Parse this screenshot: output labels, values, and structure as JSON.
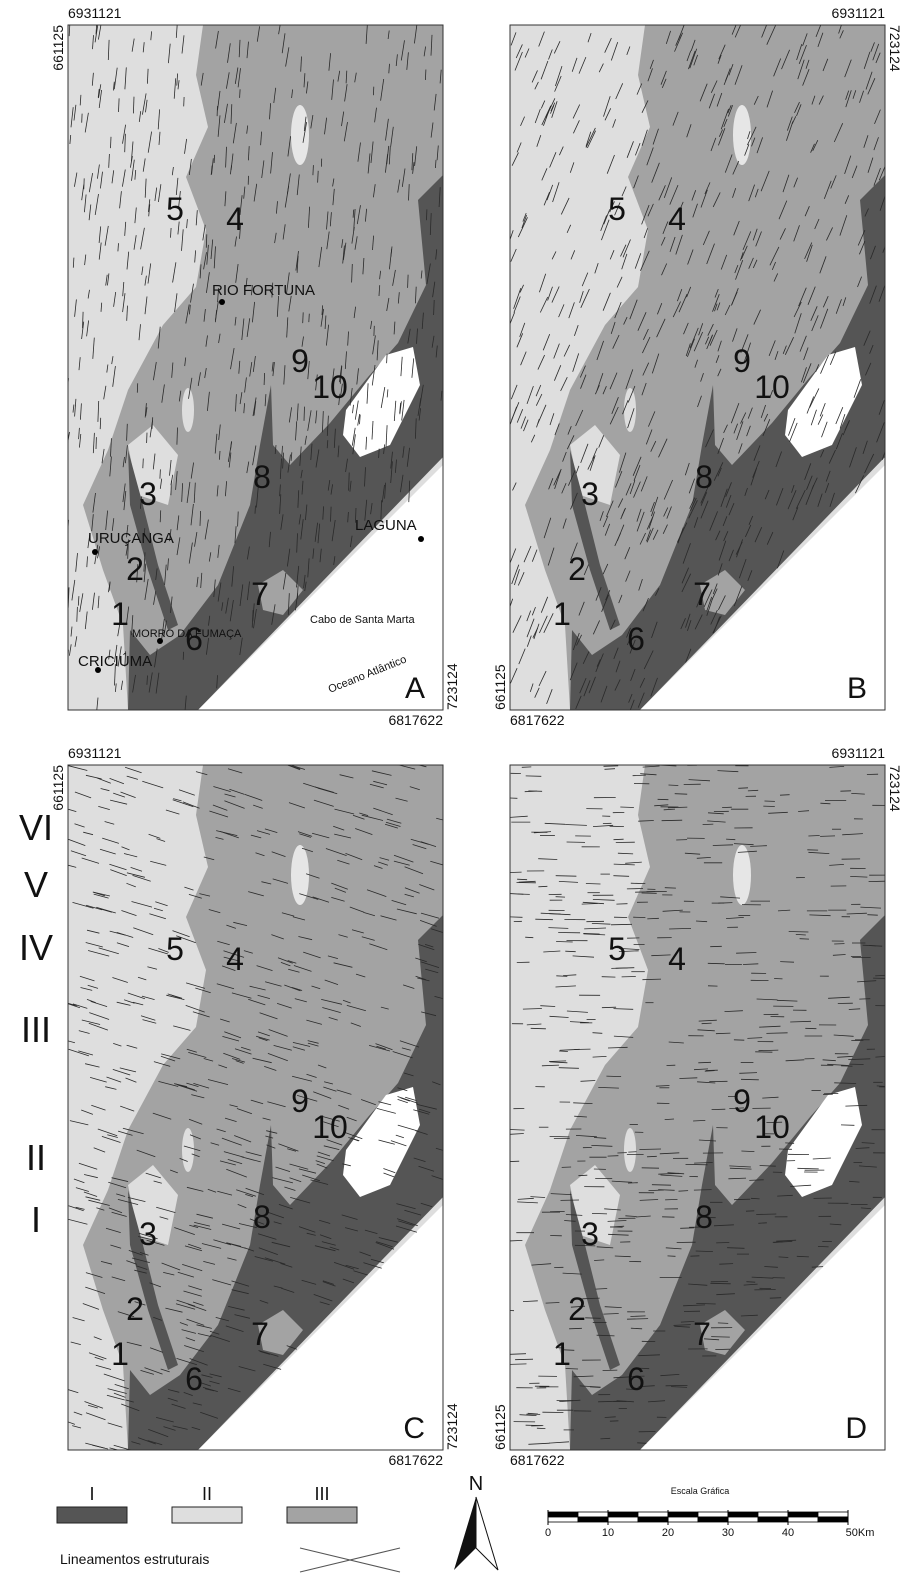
{
  "panels": [
    {
      "letter": "A",
      "coords": {
        "north": "6931121",
        "west": "661125",
        "east": "723124",
        "south": "6817622"
      },
      "numbers": [
        "1",
        "2",
        "3",
        "4",
        "5",
        "6",
        "7",
        "8",
        "9",
        "10"
      ],
      "places": [
        "RIO FORTUNA",
        "URUÇANGA",
        "CRICIÚMA",
        "MORRO DA FUMAÇA",
        "LAGUNA",
        "Cabo de Santa Marta",
        "Oceano Atlântico"
      ]
    },
    {
      "letter": "B",
      "coords": {
        "north": "6931121",
        "west": "661125",
        "east": "723124",
        "south": "6817622"
      },
      "numbers": [
        "1",
        "2",
        "3",
        "4",
        "5",
        "6",
        "7",
        "8",
        "9",
        "10"
      ]
    },
    {
      "letter": "C",
      "coords": {
        "north": "6931121",
        "west": "661125",
        "east": "723124",
        "south": "6817622"
      },
      "numbers": [
        "1",
        "2",
        "3",
        "4",
        "5",
        "6",
        "7",
        "8",
        "9",
        "10"
      ],
      "zones": [
        "VI",
        "V",
        "IV",
        "III",
        "II",
        "I"
      ]
    },
    {
      "letter": "D",
      "coords": {
        "north": "6931121",
        "west": "661125",
        "east": "723124",
        "south": "6817622"
      },
      "numbers": [
        "1",
        "2",
        "3",
        "4",
        "5",
        "6",
        "7",
        "8",
        "9",
        "10"
      ]
    }
  ],
  "legend": {
    "items": [
      "I",
      "II",
      "III"
    ],
    "lineaments": "Lineamentos estruturais"
  },
  "north": "N",
  "scale_bar": {
    "title": "Escala Gráfica",
    "ticks": [
      0,
      10,
      20,
      30,
      40,
      {
        "value": 50,
        "label": "50Km"
      }
    ]
  }
}
